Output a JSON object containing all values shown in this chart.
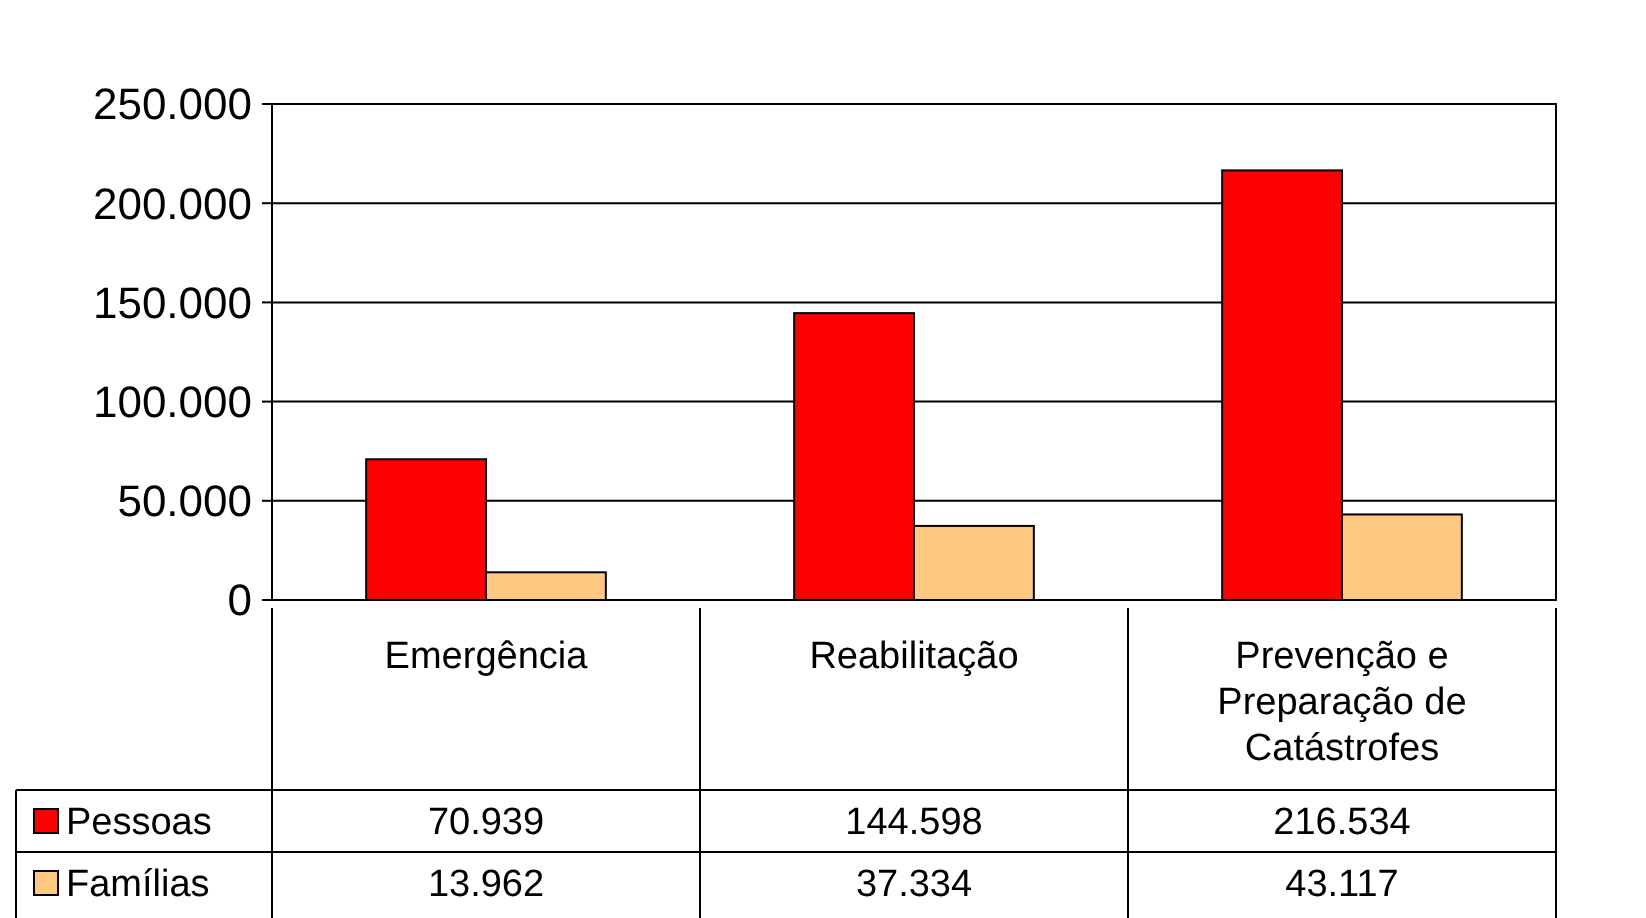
{
  "chart_data": {
    "type": "bar",
    "categories": [
      "Emergência",
      "Reabilitação",
      "Prevenção e Preparação de Catástrofes"
    ],
    "series": [
      {
        "name": "Pessoas",
        "color": "#ff0000",
        "values": [
          70939,
          144598,
          216534
        ],
        "value_labels": [
          "70.939",
          "144.598",
          "216.534"
        ]
      },
      {
        "name": "Famílias",
        "color": "#ffc880",
        "values": [
          13962,
          37334,
          43117
        ],
        "value_labels": [
          "13.962",
          "37.334",
          "43.117"
        ]
      }
    ],
    "ylim": [
      0,
      250000
    ],
    "yticks": [
      0,
      {
        "value": 50000,
        "label": "50.000"
      },
      {
        "value": 100000,
        "label": "100.000"
      },
      {
        "value": 150000,
        "label": "150.000"
      },
      {
        "value": 200000,
        "label": "200.000"
      },
      {
        "value": 250000,
        "label": "250.000"
      }
    ],
    "grid": "y",
    "legend": "bottom left"
  }
}
